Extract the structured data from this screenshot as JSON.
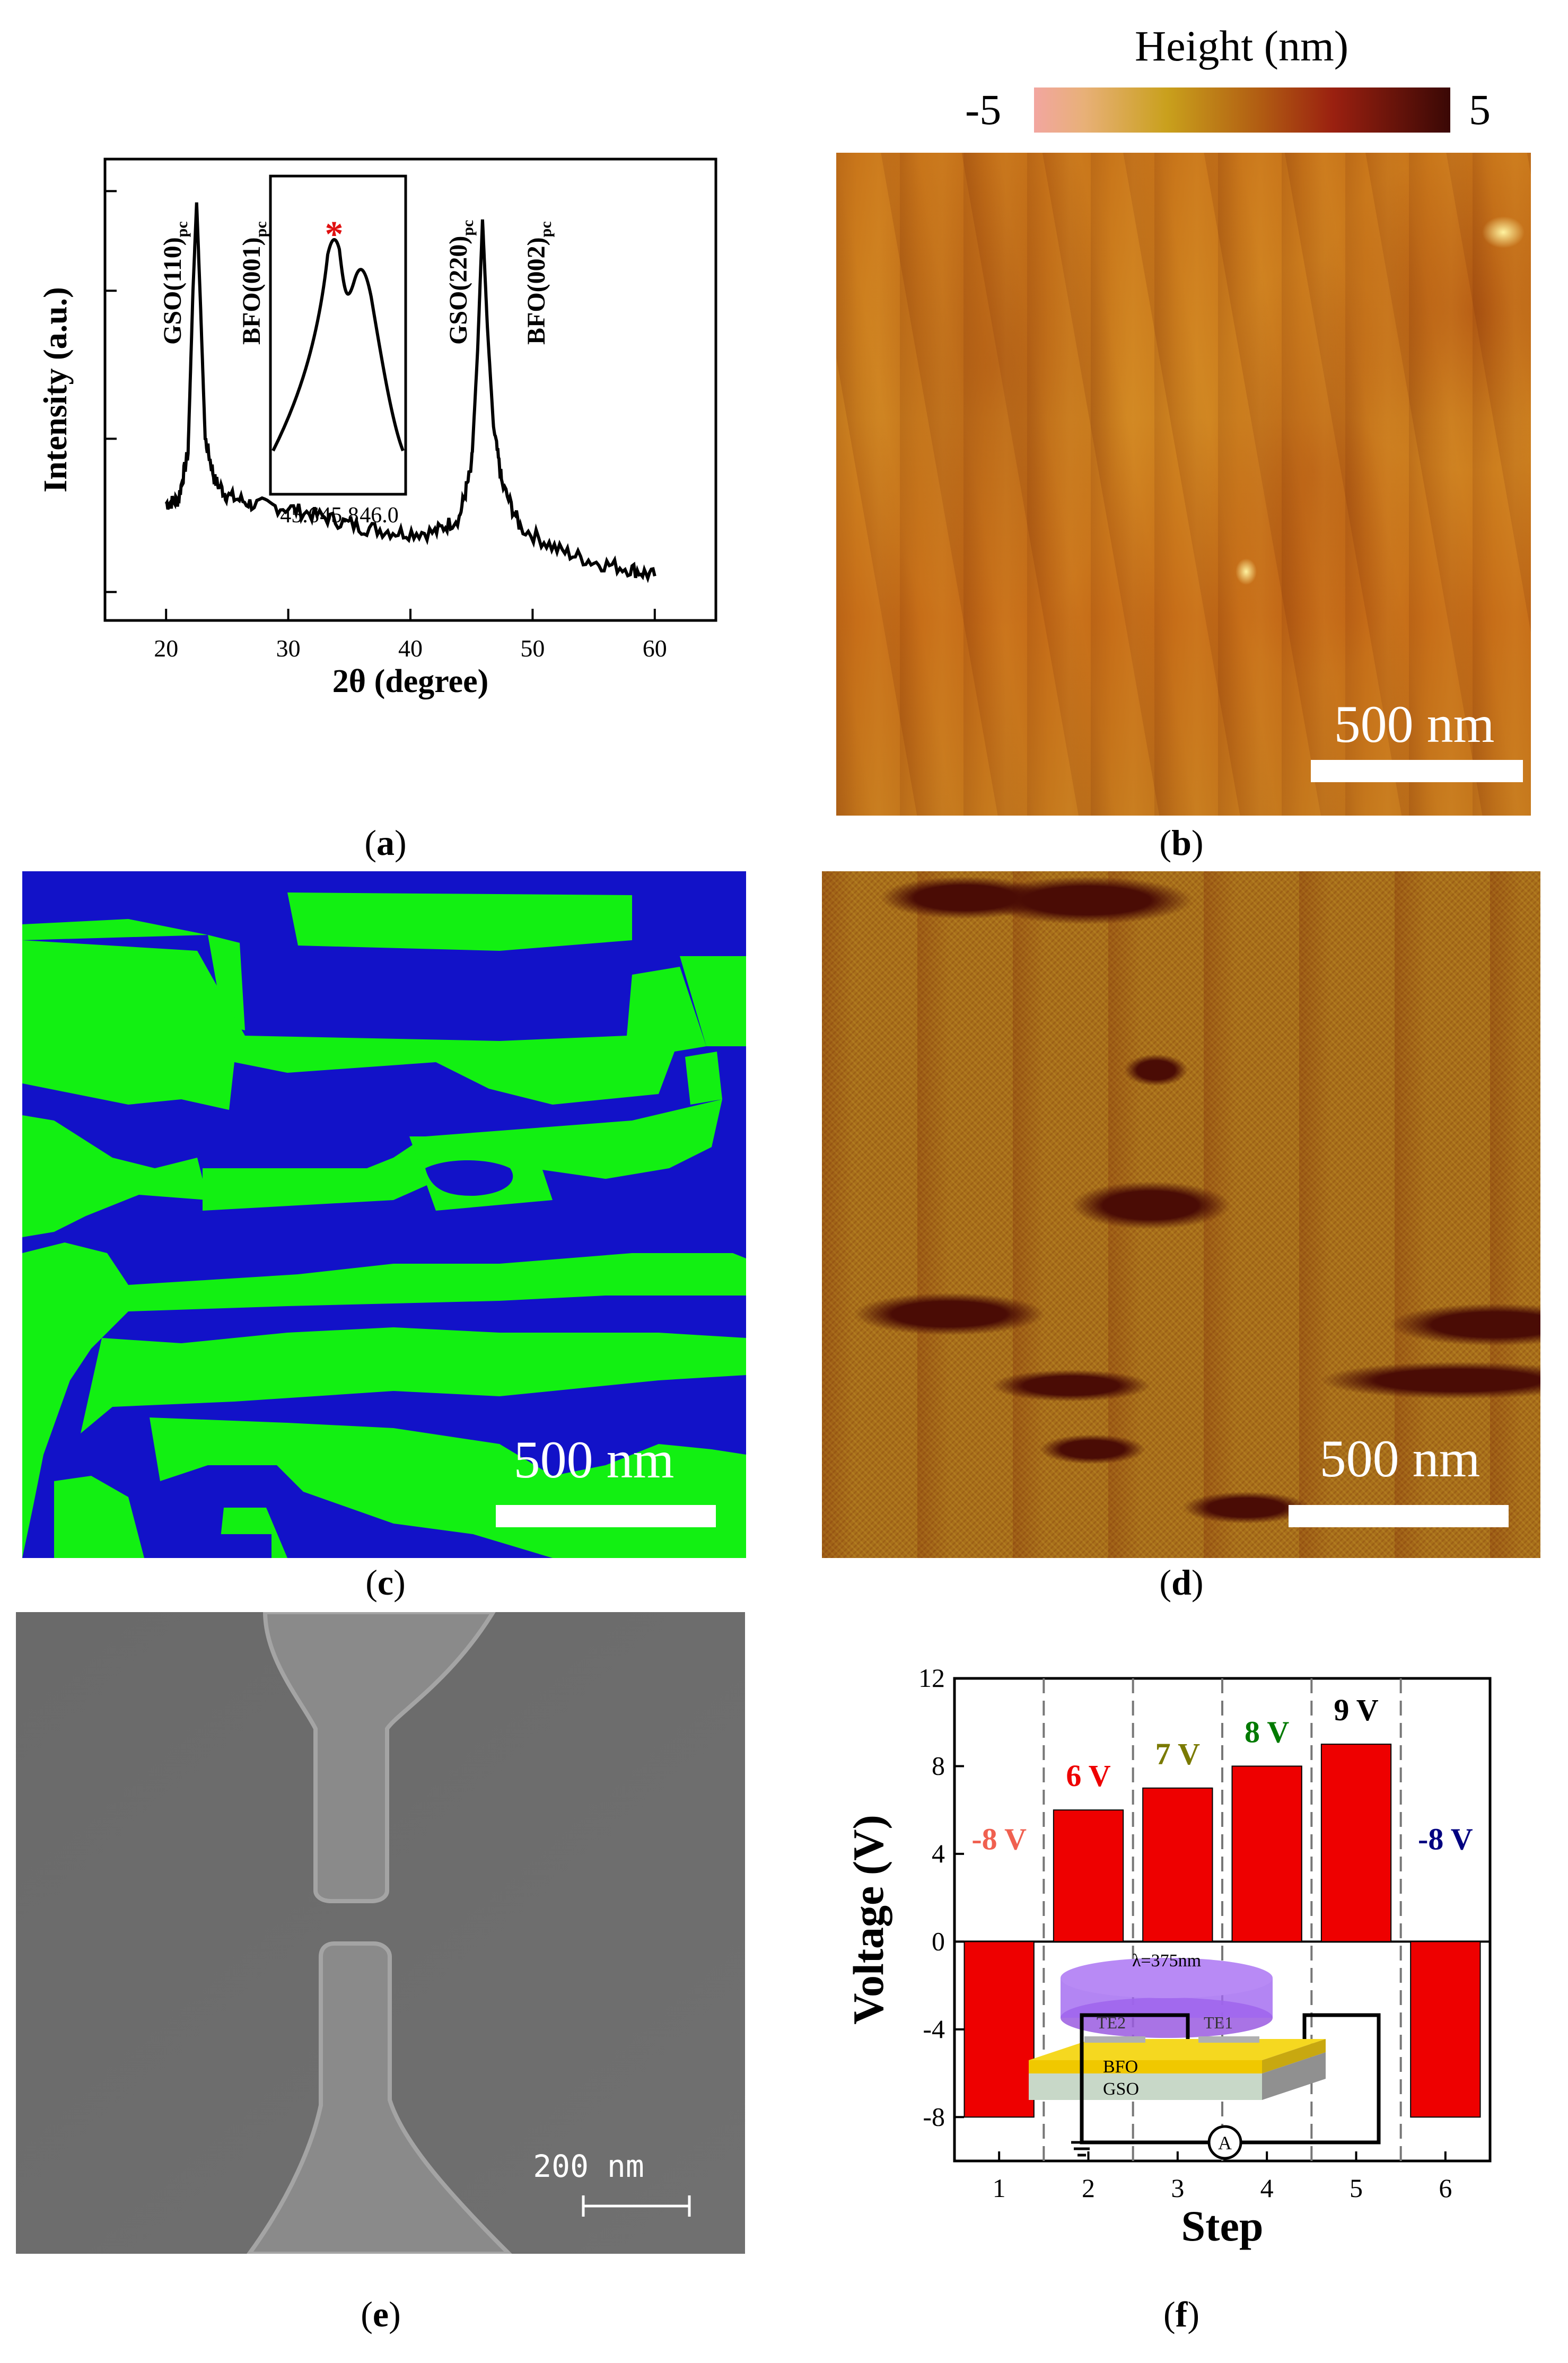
{
  "captions": {
    "a": {
      "open": "(",
      "letter": "a",
      "close": ")"
    },
    "b": {
      "open": "(",
      "letter": "b",
      "close": ")"
    },
    "c": {
      "open": "(",
      "letter": "c",
      "close": ")"
    },
    "d": {
      "open": "(",
      "letter": "d",
      "close": ")"
    },
    "e": {
      "open": "(",
      "letter": "e",
      "close": ")"
    },
    "f": {
      "open": "(",
      "letter": "f",
      "close": ")"
    }
  },
  "panel_b": {
    "colorbar_title": "Height (nm)",
    "colorbar_min": "-5",
    "colorbar_max": "5",
    "colors": [
      "#f2a6a0",
      "#c9a01c",
      "#9a2010",
      "#3a0805"
    ],
    "scalebar": "500 nm"
  },
  "panel_c": {
    "colors": {
      "blue": "#1212c8",
      "green": "#12f012"
    },
    "scalebar": "500 nm"
  },
  "panel_d": {
    "colors": {
      "base": "#a8701a",
      "dark": "#4a0c05"
    },
    "scalebar": "500 nm"
  },
  "panel_e": {
    "scalebar": "200 nm",
    "colors": {
      "bg": "#6c6c6c",
      "electrode": "#8a8a8a"
    }
  },
  "chart_data": [
    {
      "type": "line",
      "panel": "a",
      "xlabel": "2θ (degree)",
      "ylabel": "Intensity (a.u.)",
      "xlim": [
        15,
        65
      ],
      "xticks": [
        "20",
        "30",
        "40",
        "50",
        "60"
      ],
      "y_scale": "log",
      "peaks": [
        {
          "label": "GSO(110)",
          "sub": "pc",
          "x": 22.5
        },
        {
          "label": "BFO(001)",
          "sub": "pc",
          "x": 22.9
        },
        {
          "label": "GSO(220)",
          "sub": "pc",
          "x": 45.9
        },
        {
          "label": "BFO(002)",
          "sub": "pc",
          "x": 46.2
        }
      ],
      "x": [
        20,
        21,
        21.8,
        22.2,
        22.5,
        22.8,
        23.2,
        24,
        25,
        27,
        30,
        33,
        36,
        39,
        42,
        44,
        45,
        45.5,
        45.9,
        46.3,
        46.8,
        47.5,
        49,
        52,
        55,
        58,
        60
      ],
      "y": [
        0.3,
        0.31,
        0.45,
        1.6,
        3.2,
        1.5,
        0.5,
        0.36,
        0.32,
        0.3,
        0.29,
        0.27,
        0.25,
        0.24,
        0.24,
        0.27,
        0.4,
        1.0,
        2.8,
        1.2,
        0.55,
        0.35,
        0.25,
        0.21,
        0.19,
        0.18,
        0.17
      ],
      "inset": {
        "xticks": [
          "45.6",
          "45.8",
          "46.0"
        ],
        "marker": "*",
        "marker_color": "#e01010"
      }
    },
    {
      "type": "bar",
      "panel": "f",
      "xlabel": "Step",
      "ylabel": "Voltage (V)",
      "ylim": [
        -10,
        12
      ],
      "yticks": [
        "-8",
        "-4",
        "0",
        "4",
        "8",
        "12"
      ],
      "categories": [
        "1",
        "2",
        "3",
        "4",
        "5",
        "6"
      ],
      "values": [
        -8,
        6,
        7,
        8,
        9,
        -8
      ],
      "bar_color": "#ee0000",
      "labels": [
        {
          "text": "-8 V",
          "color": "#f06050"
        },
        {
          "text": "6 V",
          "color": "#ee0000"
        },
        {
          "text": "7 V",
          "color": "#7a7a00"
        },
        {
          "text": "8 V",
          "color": "#007a00"
        },
        {
          "text": "9 V",
          "color": "#000000"
        },
        {
          "text": "-8 V",
          "color": "#000080"
        }
      ],
      "inset": {
        "wavelength": "λ=375nm",
        "te2": "TE2",
        "te1": "TE1",
        "bfo": "BFO",
        "gso": "GSO",
        "ammeter": "A"
      }
    }
  ]
}
